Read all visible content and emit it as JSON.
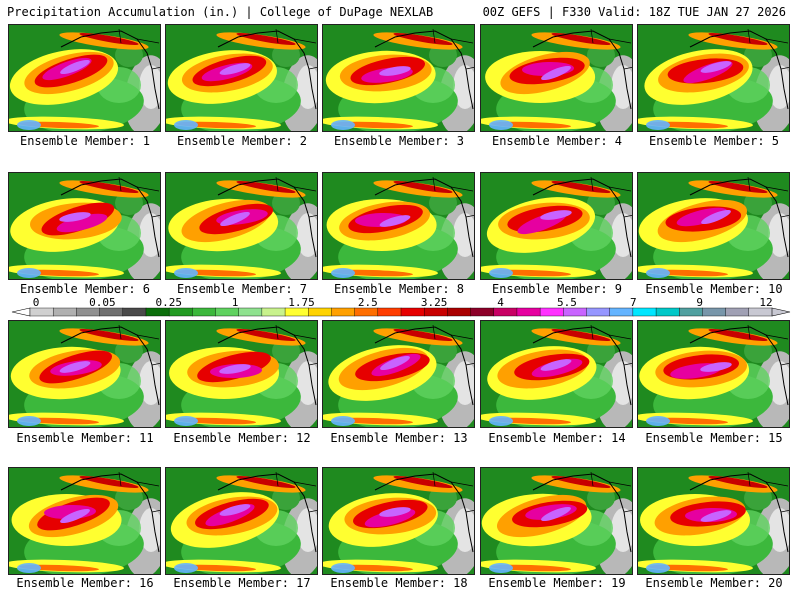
{
  "header": {
    "left_title": "Precipitation Accumulation (in.) | College of DuPage NEXLAB",
    "right_title": "00Z GEFS | F330 Valid: 18Z TUE JAN 27 2026"
  },
  "colorbar": {
    "tick_labels": [
      "0",
      "0.05",
      "0.25",
      "1",
      "1.75",
      "2.5",
      "3.25",
      "4",
      "5.5",
      "7",
      "9",
      "12"
    ],
    "colors": [
      "#d0d0d0",
      "#b0b0b0",
      "#909090",
      "#707070",
      "#4a4a4a",
      "#0b6e0b",
      "#239b23",
      "#3cb83c",
      "#5fd25f",
      "#8fe28f",
      "#c8f28c",
      "#ffff30",
      "#ffd300",
      "#ffa000",
      "#ff6e00",
      "#ff3c00",
      "#e60000",
      "#c80000",
      "#aa0000",
      "#8c0028",
      "#c80064",
      "#e600a0",
      "#ff30ff",
      "#c864ff",
      "#9696ff",
      "#64b4ff",
      "#00e6ff",
      "#00c8c8",
      "#50a0a0",
      "#7896aa",
      "#a0a0b4",
      "#c8c8d2"
    ]
  },
  "panels": [
    {
      "label": "Ensemble Member: 1"
    },
    {
      "label": "Ensemble Member: 2"
    },
    {
      "label": "Ensemble Member: 3"
    },
    {
      "label": "Ensemble Member: 4"
    },
    {
      "label": "Ensemble Member: 5"
    },
    {
      "label": "Ensemble Member: 6"
    },
    {
      "label": "Ensemble Member: 7"
    },
    {
      "label": "Ensemble Member: 8"
    },
    {
      "label": "Ensemble Member: 9"
    },
    {
      "label": "Ensemble Member: 10"
    },
    {
      "label": "Ensemble Member: 11"
    },
    {
      "label": "Ensemble Member: 12"
    },
    {
      "label": "Ensemble Member: 13"
    },
    {
      "label": "Ensemble Member: 14"
    },
    {
      "label": "Ensemble Member: 15"
    },
    {
      "label": "Ensemble Member: 16"
    },
    {
      "label": "Ensemble Member: 17"
    },
    {
      "label": "Ensemble Member: 18"
    },
    {
      "label": "Ensemble Member: 19"
    },
    {
      "label": "Ensemble Member: 20"
    }
  ]
}
